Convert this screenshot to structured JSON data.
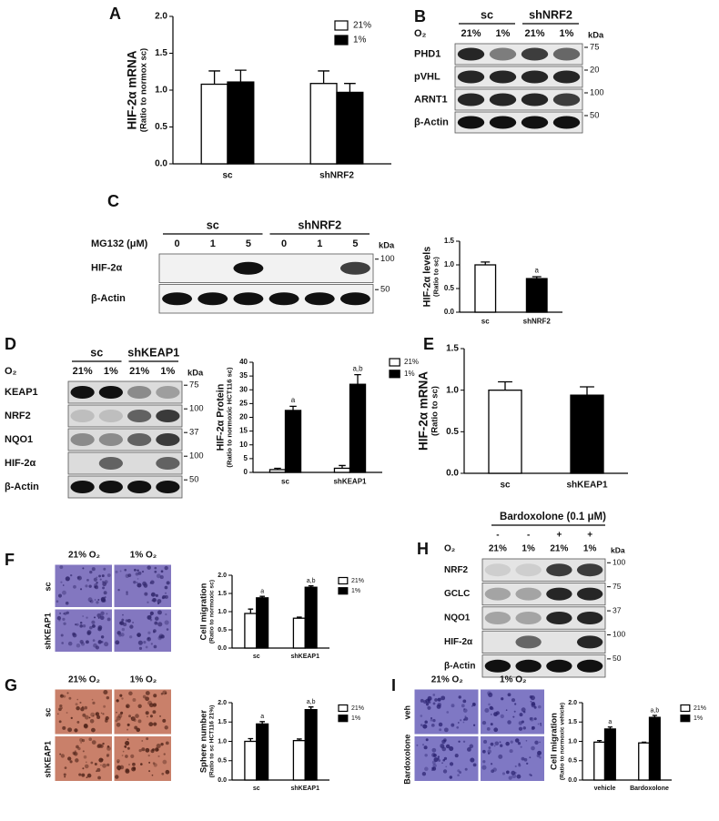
{
  "panel_letters": [
    "A",
    "B",
    "C",
    "D",
    "E",
    "F",
    "H",
    "G",
    "I"
  ],
  "chart_data": [
    {
      "type": "bar",
      "ylabel": "HIF-2α mRNA",
      "ylabel_sub": "(Ratio to normox sc)",
      "categories": [
        "sc",
        "shNRF2"
      ],
      "ylim": [
        0,
        2
      ],
      "yticks": [
        {
          "value": 0,
          "label": "0.0"
        },
        {
          "value": 0.5,
          "label": "0.5"
        },
        {
          "value": 1,
          "label": "1.0"
        },
        {
          "value": 1.5,
          "label": "1.5"
        },
        {
          "value": 2,
          "label": "2.0"
        }
      ],
      "legend": true,
      "series": [
        {
          "name": "21%",
          "color": "#ffffff",
          "values": [
            1.08,
            1.09
          ],
          "errors": [
            0.18,
            0.17
          ]
        },
        {
          "name": "1%",
          "color": "#000000",
          "values": [
            1.11,
            0.97
          ],
          "errors": [
            0.16,
            0.12
          ]
        }
      ]
    },
    {
      "type": "bar",
      "ylabel": "HIF-2α levels",
      "ylabel_sub": "(Ratio to sc)",
      "categories": [
        "sc",
        "shNRF2"
      ],
      "ylim": [
        0,
        1.5
      ],
      "yticks": [
        {
          "value": 0,
          "label": "0.0"
        },
        {
          "value": 0.5,
          "label": "0.5"
        },
        {
          "value": 1,
          "label": "1.0"
        },
        {
          "value": 1.5,
          "label": "1.5"
        }
      ],
      "legend": false,
      "series": [
        {
          "color": "#ffffff",
          "values": [
            1.0,
            null
          ],
          "errors": [
            0.06,
            null
          ]
        },
        {
          "color": "#000000",
          "values": [
            null,
            0.71
          ],
          "errors": [
            null,
            0.04
          ],
          "annotations": [
            null,
            "a"
          ]
        }
      ]
    },
    {
      "type": "bar",
      "ylabel": "HIF-2α Protein",
      "ylabel_sub": "(Ratio to normoxic HCT116 sc)",
      "categories": [
        "sc",
        "shKEAP1"
      ],
      "ylim": [
        0,
        40
      ],
      "yticks": [
        0,
        5,
        10,
        15,
        20,
        25,
        30,
        35,
        40
      ],
      "legend": true,
      "series": [
        {
          "name": "21%",
          "color": "#ffffff",
          "values": [
            1,
            1.5
          ],
          "errors": [
            0.5,
            1
          ]
        },
        {
          "name": "1%",
          "color": "#000000",
          "values": [
            22.5,
            32
          ],
          "errors": [
            1.5,
            3.5
          ],
          "annotations": [
            "a",
            "a,b"
          ]
        }
      ]
    },
    {
      "type": "bar",
      "ylabel": "HIF-2α mRNA",
      "ylabel_sub": "(Ratio to sc)",
      "categories": [
        "sc",
        "shKEAP1"
      ],
      "ylim": [
        0,
        1.5
      ],
      "yticks": [
        {
          "value": 0,
          "label": "0.0"
        },
        {
          "value": 0.5,
          "label": "0.5"
        },
        {
          "value": 1,
          "label": "1.0"
        },
        {
          "value": 1.5,
          "label": "1.5"
        }
      ],
      "legend": false,
      "series": [
        {
          "color": "#ffffff",
          "values": [
            1.0,
            null
          ],
          "errors": [
            0.1,
            null
          ]
        },
        {
          "color": "#000000",
          "values": [
            null,
            0.94
          ],
          "errors": [
            null,
            0.1
          ]
        }
      ]
    },
    {
      "type": "bar",
      "ylabel": "Cell migration",
      "ylabel_sub": "(Ratio to normoxic sc)",
      "categories": [
        "sc",
        "shKEAP1"
      ],
      "ylim": [
        0,
        2
      ],
      "yticks": [
        {
          "value": 0,
          "label": "0.0"
        },
        {
          "value": 0.5,
          "label": "0.5"
        },
        {
          "value": 1,
          "label": "1.0"
        },
        {
          "value": 1.5,
          "label": "1.5"
        },
        {
          "value": 2,
          "label": "2.0"
        }
      ],
      "legend": true,
      "series": [
        {
          "name": "21%",
          "color": "#ffffff",
          "values": [
            0.95,
            0.82
          ],
          "errors": [
            0.12,
            0.03
          ]
        },
        {
          "name": "1%",
          "color": "#000000",
          "values": [
            1.38,
            1.67
          ],
          "errors": [
            0.04,
            0.04
          ],
          "annotations": [
            "a",
            "a,b"
          ]
        }
      ]
    },
    {
      "type": "bar",
      "ylabel": "Sphere number",
      "ylabel_sub": "(Ratio to sc HCT116 21%)",
      "categories": [
        "sc",
        "shKEAP1"
      ],
      "ylim": [
        0,
        2
      ],
      "yticks": [
        {
          "value": 0,
          "label": "0.0"
        },
        {
          "value": 0.5,
          "label": "0.5"
        },
        {
          "value": 1,
          "label": "1.0"
        },
        {
          "value": 1.5,
          "label": "1.5"
        },
        {
          "value": 2,
          "label": "2.0"
        }
      ],
      "legend": true,
      "series": [
        {
          "name": "21%",
          "color": "#ffffff",
          "values": [
            1.0,
            1.02
          ],
          "errors": [
            0.07,
            0.04
          ]
        },
        {
          "name": "1%",
          "color": "#000000",
          "values": [
            1.45,
            1.82
          ],
          "errors": [
            0.06,
            0.07
          ],
          "annotations": [
            "a",
            "a,b"
          ]
        }
      ]
    },
    {
      "type": "bar",
      "ylabel": "Cell migration",
      "ylabel_sub": "(Ratio to normoxic vehicle)",
      "categories": [
        "vehicle",
        "Bardoxolone"
      ],
      "ylim": [
        0,
        2
      ],
      "yticks": [
        {
          "value": 0,
          "label": "0.0"
        },
        {
          "value": 0.5,
          "label": "0.5"
        },
        {
          "value": 1,
          "label": "1.0"
        },
        {
          "value": 1.5,
          "label": "1.5"
        },
        {
          "value": 2,
          "label": "2.0"
        }
      ],
      "legend": true,
      "series": [
        {
          "name": "21%",
          "color": "#ffffff",
          "values": [
            0.98,
            0.96
          ],
          "errors": [
            0.04,
            0.02
          ]
        },
        {
          "name": "1%",
          "color": "#000000",
          "values": [
            1.32,
            1.62
          ],
          "errors": [
            0.05,
            0.05
          ],
          "annotations": [
            "a",
            "a,b"
          ]
        }
      ]
    }
  ],
  "blots": [
    {
      "groups": [
        "sc",
        "shNRF2"
      ],
      "lane_rows": [
        {
          "label": "O₂",
          "lanes": [
            "21%",
            "1%",
            "21%",
            "1%"
          ]
        }
      ],
      "unit": "kDa",
      "rows": [
        {
          "label": "PHD1",
          "marker": "75"
        },
        {
          "label": "pVHL",
          "marker": "20"
        },
        {
          "label": "ARNT1",
          "marker": "100"
        },
        {
          "label": "β-Actin",
          "marker": "50"
        }
      ]
    },
    {
      "groups": [
        "sc",
        "shNRF2"
      ],
      "lane_rows": [
        {
          "label": "MG132 (μM)",
          "lanes": [
            "0",
            "1",
            "5",
            "0",
            "1",
            "5"
          ]
        }
      ],
      "unit": "kDa",
      "rows": [
        {
          "label": "HIF-2α",
          "marker": "100"
        },
        {
          "label": "β-Actin",
          "marker": "50"
        }
      ]
    },
    {
      "groups": [
        "sc",
        "shKEAP1"
      ],
      "lane_rows": [
        {
          "label": "O₂",
          "lanes": [
            "21%",
            "1%",
            "21%",
            "1%"
          ]
        }
      ],
      "unit": "kDa",
      "rows": [
        {
          "label": "KEAP1",
          "marker": "75"
        },
        {
          "label": "NRF2",
          "marker": "100"
        },
        {
          "label": "NQO1",
          "marker": "37"
        },
        {
          "label": "HIF-2α",
          "marker": "100"
        },
        {
          "label": "β-Actin",
          "marker": "50"
        }
      ]
    },
    {
      "title": "Bardoxolone (0.1 μM)",
      "lane_rows": [
        {
          "lanes": [
            "-",
            "-",
            "+",
            "+"
          ]
        },
        {
          "label": "O₂",
          "lanes": [
            "21%",
            "1%",
            "21%",
            "1%"
          ]
        }
      ],
      "unit": "kDa",
      "rows": [
        {
          "label": "NRF2",
          "marker": "100"
        },
        {
          "label": "GCLC",
          "marker": "75"
        },
        {
          "label": "NQO1",
          "marker": "37"
        },
        {
          "label": "HIF-2α",
          "marker": "100"
        },
        {
          "label": "β-Actin",
          "marker": "50"
        }
      ]
    }
  ],
  "micrographs": [
    {
      "columns": [
        "21% O₂",
        "1% O₂"
      ],
      "rows": [
        "sc",
        "shKEAP1"
      ]
    },
    {
      "columns": [
        "21% O₂",
        "1% O₂"
      ],
      "rows": [
        "sc",
        "shKEAP1"
      ]
    },
    {
      "columns": [
        "21% O₂",
        "1% O₂"
      ],
      "rows": [
        "veh",
        "Bardoxolone"
      ]
    }
  ]
}
